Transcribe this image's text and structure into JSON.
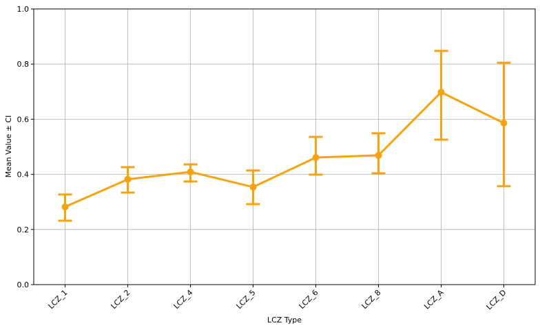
{
  "chart_data": {
    "type": "errorline",
    "xlabel": "LCZ Type",
    "ylabel": "Mean Value ± CI",
    "categories": [
      "LCZ_1",
      "LCZ_2",
      "LCZ_4",
      "LCZ_5",
      "LCZ_6",
      "LCZ_8",
      "LCZ_A",
      "LCZ_D"
    ],
    "series": [
      {
        "color": "#f5a30f",
        "values": [
          0.282,
          0.382,
          0.409,
          0.354,
          0.461,
          0.469,
          0.698,
          0.586
        ],
        "lower": [
          0.232,
          0.334,
          0.374,
          0.292,
          0.399,
          0.404,
          0.526,
          0.357
        ],
        "upper": [
          0.327,
          0.426,
          0.436,
          0.414,
          0.536,
          0.549,
          0.848,
          0.805
        ]
      }
    ],
    "ylim": [
      0,
      1
    ],
    "yticks": [
      {
        "value": 0,
        "label": "0.0"
      },
      0.2,
      0.4,
      0.6,
      0.8,
      {
        "value": 1,
        "label": "1.0"
      }
    ],
    "grid": true
  }
}
